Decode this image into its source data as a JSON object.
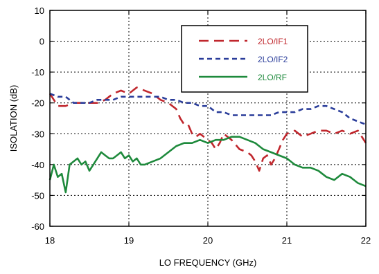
{
  "chart_data": {
    "type": "line",
    "xlabel": "LO FREQUENCY (GHz)",
    "ylabel": "ISOLATION  (dB)",
    "xlim": [
      18,
      22
    ],
    "ylim": [
      -60,
      10
    ],
    "x_ticks": [
      18,
      19,
      20,
      21,
      22
    ],
    "y_ticks": [
      10,
      0,
      -10,
      -20,
      -30,
      -40,
      -50,
      -60
    ],
    "x_tick_labels": [
      "18",
      "19",
      "20",
      "21",
      "22"
    ],
    "y_tick_labels": [
      "10",
      "0",
      "-10",
      "-20",
      "-30",
      "-40",
      "-50",
      "-60"
    ],
    "grid": true,
    "legend_position": "top-right",
    "series": [
      {
        "name": "2LO/IF1",
        "color": "#c0272d",
        "style": "long-dash",
        "x": [
          18.0,
          18.1,
          18.2,
          18.3,
          18.4,
          18.5,
          18.6,
          18.7,
          18.8,
          18.9,
          19.0,
          19.1,
          19.2,
          19.3,
          19.4,
          19.5,
          19.6,
          19.65,
          19.7,
          19.75,
          19.8,
          19.85,
          19.9,
          20.0,
          20.05,
          20.1,
          20.15,
          20.2,
          20.3,
          20.4,
          20.5,
          20.55,
          20.6,
          20.65,
          20.7,
          20.75,
          20.8,
          20.85,
          20.9,
          20.95,
          21.0,
          21.1,
          21.2,
          21.3,
          21.4,
          21.5,
          21.6,
          21.7,
          21.8,
          21.9,
          22.0
        ],
        "y": [
          -17,
          -21,
          -21,
          -20,
          -20,
          -20,
          -20,
          -19,
          -17,
          -16,
          -17,
          -15,
          -16,
          -17,
          -19,
          -20,
          -22,
          -25,
          -27,
          -27,
          -30,
          -31,
          -30,
          -32,
          -33,
          -35,
          -33,
          -30,
          -32,
          -35,
          -36,
          -37,
          -39,
          -42,
          -38,
          -37,
          -40,
          -38,
          -35,
          -32,
          -30,
          -29,
          -31,
          -30,
          -29,
          -29,
          -30,
          -29,
          -30,
          -29,
          -33
        ]
      },
      {
        "name": "2LO/IF2",
        "color": "#2a3d9a",
        "style": "short-dash",
        "x": [
          18.0,
          18.1,
          18.2,
          18.3,
          18.4,
          18.5,
          18.6,
          18.7,
          18.8,
          18.9,
          19.0,
          19.1,
          19.2,
          19.3,
          19.4,
          19.5,
          19.6,
          19.7,
          19.8,
          19.9,
          20.0,
          20.1,
          20.2,
          20.3,
          20.4,
          20.5,
          20.6,
          20.7,
          20.8,
          20.9,
          21.0,
          21.1,
          21.2,
          21.3,
          21.4,
          21.5,
          21.6,
          21.7,
          21.8,
          21.9,
          22.0
        ],
        "y": [
          -17,
          -18,
          -18,
          -20,
          -20,
          -20,
          -19,
          -19,
          -19,
          -18,
          -18,
          -18,
          -18,
          -18,
          -18,
          -19,
          -19,
          -20,
          -20,
          -21,
          -21,
          -23,
          -23,
          -24,
          -24,
          -24,
          -24,
          -24,
          -24,
          -23,
          -23,
          -23,
          -22,
          -22,
          -21,
          -21,
          -22,
          -23,
          -25,
          -26,
          -27
        ]
      },
      {
        "name": "2LO/RF",
        "color": "#1e8a3c",
        "style": "solid",
        "x": [
          18.0,
          18.05,
          18.1,
          18.15,
          18.2,
          18.25,
          18.3,
          18.35,
          18.4,
          18.45,
          18.5,
          18.55,
          18.6,
          18.65,
          18.7,
          18.75,
          18.8,
          18.85,
          18.9,
          18.95,
          19.0,
          19.05,
          19.1,
          19.15,
          19.2,
          19.3,
          19.4,
          19.5,
          19.6,
          19.7,
          19.8,
          19.9,
          20.0,
          20.1,
          20.2,
          20.3,
          20.4,
          20.5,
          20.6,
          20.7,
          20.8,
          20.9,
          21.0,
          21.1,
          21.2,
          21.3,
          21.4,
          21.5,
          21.6,
          21.7,
          21.8,
          21.9,
          22.0
        ],
        "y": [
          -45,
          -40,
          -44,
          -43,
          -49,
          -40,
          -39,
          -38,
          -40,
          -39,
          -42,
          -40,
          -38,
          -36,
          -37,
          -38,
          -38,
          -37,
          -36,
          -38,
          -37,
          -39,
          -38,
          -40,
          -40,
          -39,
          -38,
          -36,
          -34,
          -33,
          -33,
          -32,
          -33,
          -32,
          -32,
          -31,
          -31,
          -32,
          -33,
          -35,
          -36,
          -37,
          -38,
          -40,
          -41,
          -41,
          -42,
          -44,
          -45,
          -43,
          -44,
          -46,
          -47
        ]
      }
    ]
  }
}
